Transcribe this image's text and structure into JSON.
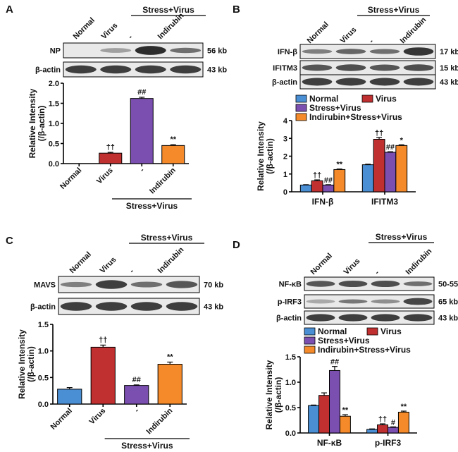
{
  "colors": {
    "Normal": "#4a8fd4",
    "Virus": "#c03030",
    "Stress+Virus": "#7b4fb0",
    "Indirubin+Stress+Virus": "#f48a2a"
  },
  "legend": [
    "Normal",
    "Virus",
    "Stress+Virus",
    "Indirubin+Stress+Virus"
  ],
  "panels": {
    "A": {
      "letter": "A",
      "group_header": "Stress+Virus",
      "lanes": [
        "Normal",
        "Virus",
        "-",
        "Indirubin"
      ],
      "blots": [
        {
          "label": "NP",
          "size": "56 kb"
        },
        {
          "label": "β-actin",
          "size": "43 kb"
        }
      ],
      "y_label_1": "Relative Intensity",
      "y_label_2": "(/β-actin)",
      "x_group_label": "Stress+Virus"
    },
    "B": {
      "letter": "B",
      "group_header": "Stress+Virus",
      "lanes": [
        "Normal",
        "Virus",
        "-",
        "Indirubin"
      ],
      "blots": [
        {
          "label": "IFN-β",
          "size": "17 kb"
        },
        {
          "label": "IFITM3",
          "size": "15 kb"
        },
        {
          "label": "β-actin",
          "size": "43 kb"
        }
      ],
      "y_label_1": "Relative Intensity",
      "y_label_2": "(/β-actin)"
    },
    "C": {
      "letter": "C",
      "group_header": "Stress+Virus",
      "lanes": [
        "Normal",
        "Virus",
        "-",
        "Indirubin"
      ],
      "blots": [
        {
          "label": "MAVS",
          "size": "70 kb"
        },
        {
          "label": "β-actin",
          "size": "43 kb"
        }
      ],
      "y_label_1": "Relative Intensity",
      "y_label_2": "(/β-actin)",
      "x_group_label": "Stress+Virus"
    },
    "D": {
      "letter": "D",
      "group_header": "Stress+Virus",
      "lanes": [
        "Normal",
        "Virus",
        "-",
        "Indirubin"
      ],
      "blots": [
        {
          "label": "NF-κB",
          "size": "50-55 kb"
        },
        {
          "label": "p-IRF3",
          "size": "65 kb"
        },
        {
          "label": "β-actin",
          "size": "43 kb"
        }
      ],
      "y_label_1": "Relative Intensity",
      "y_label_2": "(/β-actin)"
    }
  },
  "chart_data": [
    {
      "panel": "A",
      "type": "bar",
      "categories": [
        "Normal",
        "Virus",
        "-",
        "Indirubin"
      ],
      "series_colors": [
        "Normal",
        "Virus",
        "Stress+Virus",
        "Indirubin+Stress+Virus"
      ],
      "values": [
        0.0,
        0.26,
        1.62,
        0.45
      ],
      "errors": [
        0.0,
        0.02,
        0.03,
        0.02
      ],
      "annotations": [
        "",
        "††",
        "##",
        "**"
      ],
      "ylim": [
        0,
        2.0
      ],
      "yticks": [
        "0.0",
        "0.5",
        "1.0",
        "1.5",
        "2.0"
      ]
    },
    {
      "panel": "B",
      "type": "bar",
      "categories": [
        "IFN-β",
        "IFITM3"
      ],
      "series": [
        {
          "name": "Normal",
          "values": [
            0.38,
            1.52
          ],
          "errors": [
            0.02,
            0.03
          ],
          "annotations": [
            "",
            ""
          ]
        },
        {
          "name": "Virus",
          "values": [
            0.62,
            2.95
          ],
          "errors": [
            0.05,
            0.1
          ],
          "annotations": [
            "††",
            "††"
          ]
        },
        {
          "name": "Stress+Virus",
          "values": [
            0.38,
            2.22
          ],
          "errors": [
            0.02,
            0.03
          ],
          "annotations": [
            "##",
            "##"
          ]
        },
        {
          "name": "Indirubin+Stress+Virus",
          "values": [
            1.25,
            2.6
          ],
          "errors": [
            0.03,
            0.04
          ],
          "annotations": [
            "**",
            "*"
          ]
        }
      ],
      "ylim": [
        0,
        4
      ],
      "yticks": [
        "0",
        "1",
        "2",
        "3",
        "4"
      ]
    },
    {
      "panel": "C",
      "type": "bar",
      "categories": [
        "Normal",
        "Virus",
        "-",
        "Indirubin"
      ],
      "series_colors": [
        "Normal",
        "Virus",
        "Stress+Virus",
        "Indirubin+Stress+Virus"
      ],
      "values": [
        0.28,
        1.07,
        0.35,
        0.75
      ],
      "errors": [
        0.03,
        0.04,
        0.01,
        0.04
      ],
      "annotations": [
        "",
        "††",
        "##",
        "**"
      ],
      "ylim": [
        0,
        1.5
      ],
      "yticks": [
        "0.0",
        "0.5",
        "1.0",
        "1.5"
      ]
    },
    {
      "panel": "D",
      "type": "bar",
      "categories": [
        "NF-κB",
        "p-IRF3"
      ],
      "series": [
        {
          "name": "Normal",
          "values": [
            0.54,
            0.07
          ],
          "errors": [
            0.01,
            0.01
          ],
          "annotations": [
            "",
            ""
          ]
        },
        {
          "name": "Virus",
          "values": [
            0.74,
            0.16
          ],
          "errors": [
            0.05,
            0.02
          ],
          "annotations": [
            "",
            "††"
          ]
        },
        {
          "name": "Stress+Virus",
          "values": [
            1.23,
            0.11
          ],
          "errors": [
            0.08,
            0.01
          ],
          "annotations": [
            "##",
            "#"
          ]
        },
        {
          "name": "Indirubin+Stress+Virus",
          "values": [
            0.33,
            0.41
          ],
          "errors": [
            0.03,
            0.02
          ],
          "annotations": [
            "**",
            "**"
          ]
        }
      ],
      "ylim": [
        0,
        1.5
      ],
      "yticks": [
        "0.0",
        "0.5",
        "1.0",
        "1.5"
      ]
    }
  ]
}
